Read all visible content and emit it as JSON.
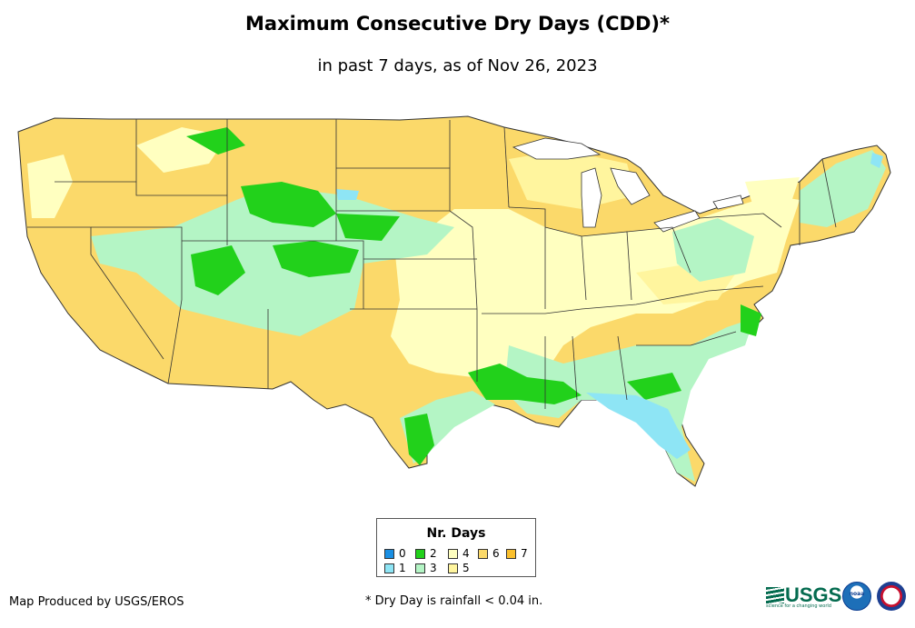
{
  "title": "Maximum Consecutive Dry Days (CDD)*",
  "subtitle": "in past 7 days, as of Nov 26, 2023",
  "legend": {
    "title": "Nr. Days",
    "items": [
      {
        "label": "0",
        "color": "#1a8fe3"
      },
      {
        "label": "1",
        "color": "#8ee5f5"
      },
      {
        "label": "2",
        "color": "#22d11b"
      },
      {
        "label": "3",
        "color": "#b4f5c5"
      },
      {
        "label": "4",
        "color": "#ffffc0"
      },
      {
        "label": "5",
        "color": "#fff59e"
      },
      {
        "label": "6",
        "color": "#fbd96a"
      },
      {
        "label": "7",
        "color": "#fbc02d"
      }
    ]
  },
  "credit": "Map Produced by USGS/EROS",
  "footnote": "* Dry Day is rainfall < 0.04 in.",
  "logos": {
    "usgs": "USGS",
    "usgs_tagline": "science for a changing world",
    "noaa": "noaa"
  }
}
